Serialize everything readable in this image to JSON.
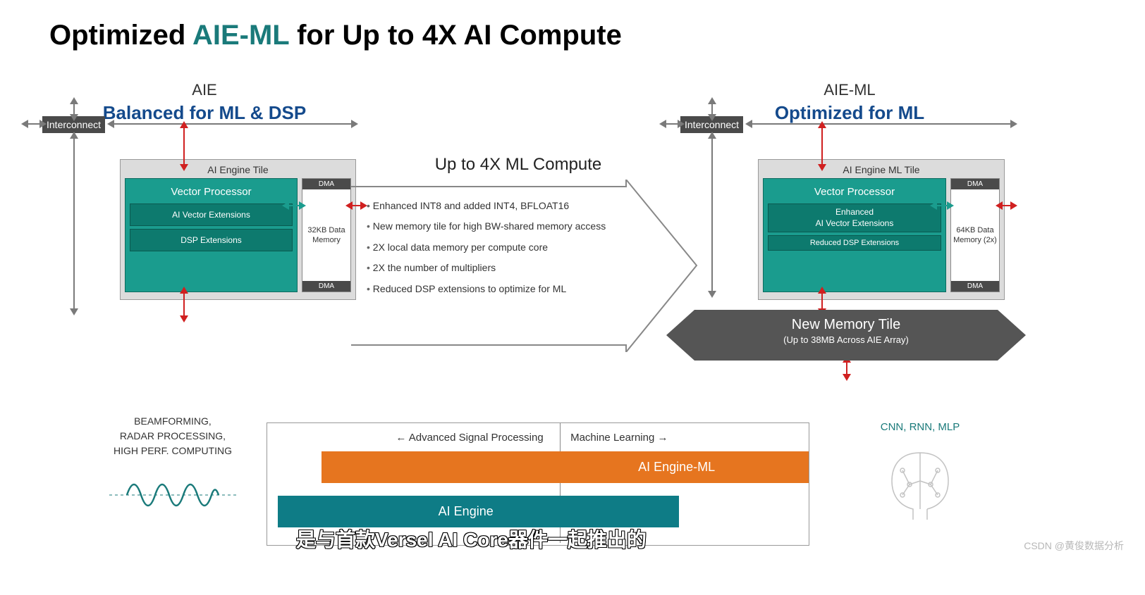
{
  "colors": {
    "accent_teal": "#1a7a7a",
    "title_blue": "#144a8c",
    "tile_bg": "#dcdcdc",
    "vproc_bg": "#1a9c8e",
    "vproc_sub_bg": "#0d7a6e",
    "interconnect_bg": "#4a4a4a",
    "arrow_red": "#d02020",
    "arrow_gray": "#7a7a7a",
    "arrow_teal": "#1a9c8e",
    "big_arrow_stroke": "#888888",
    "banner_bg": "#555555",
    "bar_orange": "#e6751f",
    "bar_teal": "#0e7c86",
    "wave_color": "#1a7a7a"
  },
  "title": {
    "pre": "Optimized ",
    "accent": "AIE-ML",
    "post": " for Up to 4X AI Compute"
  },
  "left": {
    "small": "AIE",
    "big": "Balanced for ML & DSP",
    "interconnect": "Interconnect",
    "tile_title": "AI Engine Tile",
    "vproc": "Vector Processor",
    "ext1": "AI Vector Extensions",
    "ext2": "DSP Extensions",
    "dma": "DMA",
    "mem": "32KB Data Memory"
  },
  "right": {
    "small": "AIE-ML",
    "big": "Optimized for ML",
    "interconnect": "Interconnect",
    "tile_title": "AI Engine ML Tile",
    "vproc": "Vector Processor",
    "ext1a": "Enhanced",
    "ext1b": "AI Vector Extensions",
    "ext2": "Reduced DSP Extensions",
    "dma": "DMA",
    "mem": "64KB Data Memory (2x)",
    "banner_t1": "New Memory Tile",
    "banner_t2": "(Up to 38MB Across AIE Array)"
  },
  "center": {
    "heading": "Up to 4X ML Compute",
    "bullets": [
      "Enhanced INT8 and added INT4, BFLOAT16",
      "New memory tile for high BW-shared memory access",
      "2X local data memory per compute core",
      "2X the number of multipliers",
      "Reduced DSP extensions to optimize for ML"
    ]
  },
  "bottom_left": {
    "l1": "BEAMFORMING,",
    "l2": "RADAR PROCESSING,",
    "l3": "HIGH PERF. COMPUTING"
  },
  "chart": {
    "left_label": "←  Advanced Signal Processing",
    "right_label": "Machine Learning  →",
    "divider_pct": 54,
    "bars": [
      {
        "label": "AI Engine-ML",
        "left_pct": 10,
        "width_pct": 90,
        "color": "#e6751f",
        "text_left_pct": 65
      },
      {
        "label": "AI Engine",
        "left_pct": 2,
        "width_pct": 74,
        "color": "#0e7c86",
        "text_left_pct": 40
      }
    ]
  },
  "bottom_right": "CNN, RNN, MLP",
  "subtitle": "是与首款Versel AI Core器件一起推出的",
  "watermark": "CSDN @黄俊数据分析"
}
